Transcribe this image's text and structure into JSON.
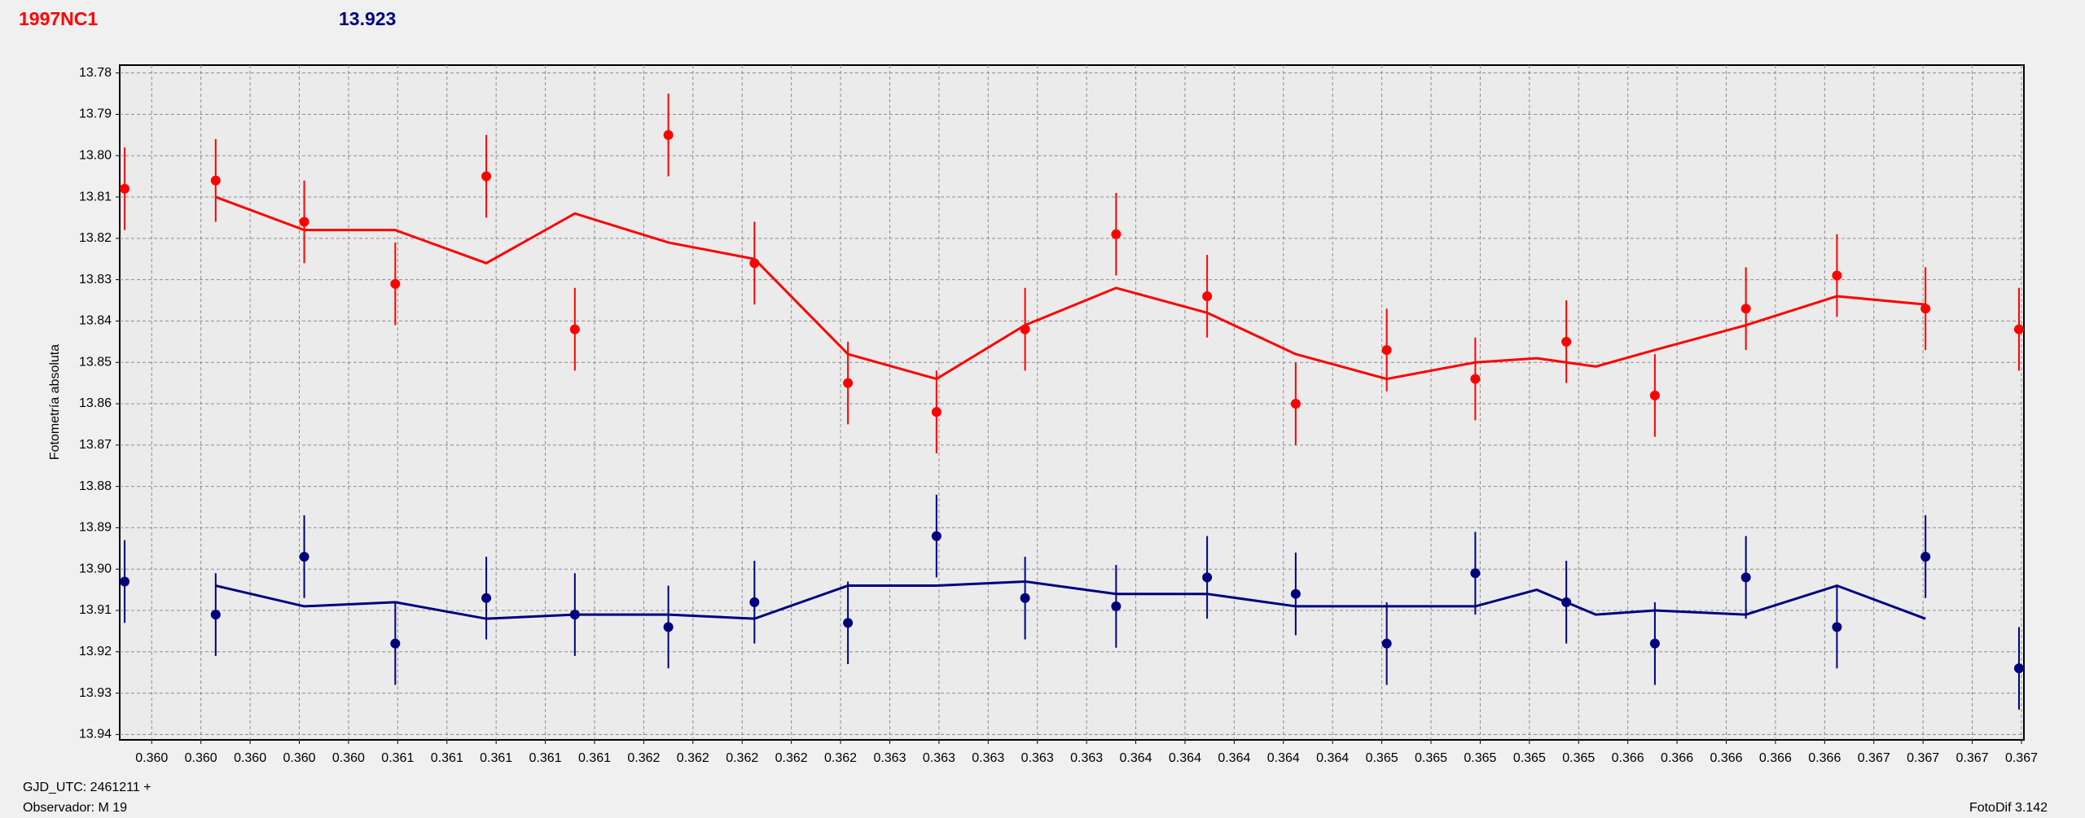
{
  "header": {
    "object": "1997NC1",
    "value": "13.923"
  },
  "footer": {
    "gjd": "GJD_UTC: 2461211 +",
    "observer": "Observador: M 19",
    "software": "FotoDif 3.142"
  },
  "chart_data": {
    "type": "scatter",
    "ylabel": "Fotometría absoluta",
    "y_inverted": true,
    "grid": true,
    "xlim": [
      0.35947,
      0.36721
    ],
    "ylim": [
      13.7781,
      13.9413
    ],
    "yticks": [
      13.78,
      13.79,
      {
        "value": 13.8,
        "label": "13.80"
      },
      13.81,
      13.82,
      13.83,
      13.84,
      13.85,
      13.86,
      13.87,
      13.88,
      13.89,
      {
        "value": 13.9,
        "label": "13.90"
      },
      13.91,
      13.92,
      13.93,
      13.94
    ],
    "xticks": [
      {
        "value": 0.3596,
        "label": "0.360"
      },
      {
        "value": 0.3598,
        "label": "0.360"
      },
      {
        "value": 0.36,
        "label": "0.360"
      },
      {
        "value": 0.3602,
        "label": "0.360"
      },
      {
        "value": 0.3604,
        "label": "0.360"
      },
      {
        "value": 0.3606,
        "label": "0.361"
      },
      {
        "value": 0.3608,
        "label": "0.361"
      },
      {
        "value": 0.361,
        "label": "0.361"
      },
      {
        "value": 0.3612,
        "label": "0.361"
      },
      {
        "value": 0.3614,
        "label": "0.361"
      },
      {
        "value": 0.3616,
        "label": "0.362"
      },
      {
        "value": 0.3618,
        "label": "0.362"
      },
      {
        "value": 0.362,
        "label": "0.362"
      },
      {
        "value": 0.3622,
        "label": "0.362"
      },
      {
        "value": 0.3624,
        "label": "0.362"
      },
      {
        "value": 0.3626,
        "label": "0.363"
      },
      {
        "value": 0.3628,
        "label": "0.363"
      },
      {
        "value": 0.363,
        "label": "0.363"
      },
      {
        "value": 0.3632,
        "label": "0.363"
      },
      {
        "value": 0.3634,
        "label": "0.363"
      },
      {
        "value": 0.3636,
        "label": "0.364"
      },
      {
        "value": 0.3638,
        "label": "0.364"
      },
      {
        "value": 0.364,
        "label": "0.364"
      },
      {
        "value": 0.3642,
        "label": "0.364"
      },
      {
        "value": 0.3644,
        "label": "0.364"
      },
      {
        "value": 0.3646,
        "label": "0.365"
      },
      {
        "value": 0.3648,
        "label": "0.365"
      },
      {
        "value": 0.365,
        "label": "0.365"
      },
      {
        "value": 0.3652,
        "label": "0.365"
      },
      {
        "value": 0.3654,
        "label": "0.365"
      },
      {
        "value": 0.3656,
        "label": "0.366"
      },
      {
        "value": 0.3658,
        "label": "0.366"
      },
      {
        "value": 0.366,
        "label": "0.366"
      },
      {
        "value": 0.3662,
        "label": "0.366"
      },
      {
        "value": 0.3664,
        "label": "0.366"
      },
      {
        "value": 0.3666,
        "label": "0.367"
      },
      {
        "value": 0.3668,
        "label": "0.367"
      },
      {
        "value": 0.367,
        "label": "0.367"
      },
      {
        "value": 0.3672,
        "label": "0.367"
      }
    ],
    "series": [
      {
        "color": "#ff0000",
        "x": [
          0.35949,
          0.35986,
          0.36022,
          0.36059,
          0.36096,
          0.36132,
          0.3617,
          0.36205,
          0.36243,
          0.36279,
          0.36315,
          0.36352,
          0.36389,
          0.36425,
          0.36462,
          0.36498,
          0.36535,
          0.36571,
          0.36608,
          0.36645,
          0.36681,
          0.36719
        ],
        "values": [
          13.808,
          13.806,
          13.816,
          13.831,
          13.805,
          13.842,
          13.795,
          13.826,
          13.855,
          13.862,
          13.842,
          13.819,
          13.834,
          13.86,
          13.847,
          13.854,
          13.845,
          13.858,
          13.837,
          13.829,
          13.837,
          13.842
        ],
        "errors": [
          0.01,
          0.01,
          0.01,
          0.01,
          0.01,
          0.01,
          0.01,
          0.01,
          0.01,
          0.01,
          0.01,
          0.01,
          0.01,
          0.01,
          0.01,
          0.01,
          0.01,
          0.01,
          0.01,
          0.01,
          0.01,
          0.01
        ],
        "fit_x": [
          0.35986,
          0.36022,
          0.36059,
          0.36096,
          0.36132,
          0.3617,
          0.36205,
          0.36243,
          0.36279,
          0.36315,
          0.36352,
          0.36389,
          0.36425,
          0.36462,
          0.36498,
          0.36523,
          0.36535,
          0.36547,
          0.36571,
          0.36608,
          0.36645,
          0.36681
        ],
        "fit_values": [
          13.81,
          13.818,
          13.818,
          13.826,
          13.814,
          13.821,
          13.825,
          13.848,
          13.854,
          13.841,
          13.832,
          13.838,
          13.848,
          13.854,
          13.85,
          13.849,
          13.85,
          13.851,
          13.847,
          13.841,
          13.834,
          13.836
        ]
      },
      {
        "color": "#00007f",
        "x": [
          0.35949,
          0.35986,
          0.36022,
          0.36059,
          0.36096,
          0.36132,
          0.3617,
          0.36205,
          0.36243,
          0.36279,
          0.36315,
          0.36352,
          0.36389,
          0.36425,
          0.36462,
          0.36498,
          0.36535,
          0.36571,
          0.36608,
          0.36645,
          0.36681,
          0.36719
        ],
        "values": [
          13.903,
          13.911,
          13.897,
          13.918,
          13.907,
          13.911,
          13.914,
          13.908,
          13.913,
          13.892,
          13.907,
          13.909,
          13.902,
          13.906,
          13.918,
          13.901,
          13.908,
          13.918,
          13.902,
          13.914,
          13.897,
          13.924
        ],
        "errors": [
          0.01,
          0.01,
          0.01,
          0.01,
          0.01,
          0.01,
          0.01,
          0.01,
          0.01,
          0.01,
          0.01,
          0.01,
          0.01,
          0.01,
          0.01,
          0.01,
          0.01,
          0.01,
          0.01,
          0.01,
          0.01,
          0.01
        ],
        "fit_x": [
          0.35986,
          0.36022,
          0.36059,
          0.36096,
          0.36132,
          0.3617,
          0.36205,
          0.36243,
          0.36279,
          0.36315,
          0.36352,
          0.36389,
          0.36425,
          0.36462,
          0.36498,
          0.36523,
          0.36547,
          0.36571,
          0.36608,
          0.36645,
          0.36681
        ],
        "fit_values": [
          13.904,
          13.909,
          13.908,
          13.912,
          13.911,
          13.911,
          13.912,
          13.904,
          13.904,
          13.903,
          13.906,
          13.906,
          13.909,
          13.909,
          13.909,
          13.905,
          13.911,
          13.91,
          13.911,
          13.904,
          13.912
        ]
      }
    ]
  }
}
